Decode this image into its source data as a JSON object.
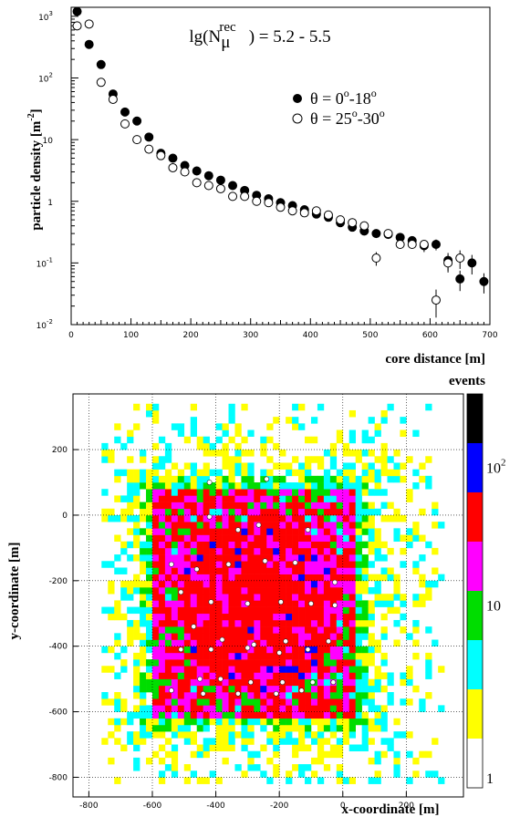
{
  "chart_data": [
    {
      "type": "scatter",
      "title": "",
      "annotation": {
        "prefix": "lg(N",
        "sub": "μ",
        "sup": "rec",
        "suffix": ") = 5.2 - 5.5"
      },
      "xlabel": "core distance  [m]",
      "ylabel": "particle density  [m",
      "ylabel_sup": "-2",
      "ylabel_close": "]",
      "x_ticks": [
        "0",
        "100",
        "200",
        "300",
        "400",
        "500",
        "600",
        "700"
      ],
      "y_ticks": [
        {
          "base": "10",
          "exp": "-2"
        },
        {
          "base": "10",
          "exp": "-1"
        },
        {
          "base": "1",
          "exp": ""
        },
        {
          "base": "10",
          "exp": ""
        },
        {
          "base": "10",
          "exp": "2"
        },
        {
          "base": "10",
          "exp": "3"
        }
      ],
      "xlim": [
        0,
        700
      ],
      "ylim": [
        0.01,
        1400
      ],
      "yscale": "log",
      "legend_position": "top-right",
      "series": [
        {
          "name": "θ = 0°-18°",
          "legend_text": "θ = 0",
          "legend_sup1": "o",
          "legend_mid": "-18",
          "legend_sup2": "o",
          "marker": "filled-circle",
          "x": [
            10,
            30,
            50,
            70,
            90,
            110,
            130,
            150,
            170,
            190,
            210,
            230,
            250,
            270,
            290,
            310,
            330,
            350,
            370,
            390,
            410,
            430,
            450,
            470,
            490,
            510,
            530,
            550,
            570,
            590,
            610,
            630,
            650,
            670,
            690
          ],
          "y": [
            1200,
            350,
            165,
            55,
            28,
            20,
            11,
            6,
            5,
            3.8,
            3.1,
            2.6,
            2.2,
            1.8,
            1.5,
            1.25,
            1.1,
            0.95,
            0.85,
            0.73,
            0.62,
            0.55,
            0.45,
            0.38,
            0.33,
            0.3,
            0.29,
            0.26,
            0.23,
            0.19,
            0.2,
            0.11,
            0.055,
            0.1,
            0.05
          ],
          "err": [
            0,
            0,
            0,
            0,
            0,
            0,
            0,
            0,
            0,
            0,
            0,
            0,
            0,
            0,
            0,
            0,
            0,
            0,
            0,
            0,
            0,
            0,
            0,
            0,
            0,
            0,
            0,
            0,
            0,
            0.04,
            0.04,
            0.035,
            0.02,
            0.035,
            0.018
          ]
        },
        {
          "name": "θ = 25°-30°",
          "legend_text": "θ = 25",
          "legend_sup1": "o",
          "legend_mid": "-30",
          "legend_sup2": "o",
          "marker": "open-circle",
          "x": [
            10,
            30,
            50,
            70,
            90,
            110,
            130,
            150,
            170,
            190,
            210,
            230,
            250,
            270,
            290,
            310,
            330,
            350,
            370,
            390,
            410,
            430,
            450,
            470,
            490,
            510,
            530,
            550,
            570,
            590,
            610,
            630,
            650
          ],
          "y": [
            700,
            750,
            85,
            45,
            18,
            10,
            7,
            5.5,
            3.5,
            3,
            2,
            1.8,
            1.6,
            1.2,
            1.2,
            1,
            0.95,
            0.8,
            0.7,
            0.65,
            0.7,
            0.6,
            0.5,
            0.45,
            0.4,
            0.12,
            0.3,
            0.2,
            0.2,
            0.2,
            0.025,
            0.1,
            0.12
          ],
          "err": [
            0,
            0,
            0,
            0,
            0,
            0,
            0,
            0,
            0,
            0,
            0,
            0,
            0,
            0,
            0,
            0,
            0,
            0,
            0,
            0,
            0,
            0,
            0,
            0,
            0,
            0.03,
            0,
            0,
            0,
            0,
            0.012,
            0.03,
            0.04
          ]
        }
      ]
    },
    {
      "type": "heatmap",
      "title": "",
      "xlabel": "x-coordinate [m]",
      "ylabel": "y-coordinate [m]",
      "x_ticks": [
        "-800",
        "-600",
        "-400",
        "-200",
        "0",
        "200"
      ],
      "y_ticks": [
        "200",
        "0",
        "-200",
        "-400",
        "-600",
        "-800"
      ],
      "xlim": [
        -850,
        380
      ],
      "ylim": [
        -860,
        370
      ],
      "colorbar": {
        "title": "events",
        "labels": [
          {
            "base": "1",
            "exp": ""
          },
          {
            "base": "10",
            "exp": ""
          },
          {
            "base": "10",
            "exp": "2"
          }
        ],
        "colors": [
          "#ffffff",
          "#ffff00",
          "#00ffff",
          "#00dd00",
          "#ff00ff",
          "#ff0000",
          "#0000ff",
          "#000000"
        ]
      },
      "detector_stations_x": [
        -420,
        -330,
        -265,
        -110,
        -540,
        -460,
        -360,
        -245,
        -150,
        -510,
        -415,
        -300,
        -195,
        -100,
        -470,
        -380,
        -280,
        -180,
        -510,
        -415,
        -300,
        -200,
        -110,
        -450,
        -385,
        -290,
        -190,
        -95,
        -540,
        -440,
        -330,
        -210,
        -130,
        -30,
        -45,
        -25,
        -25,
        -420,
        -240
      ],
      "detector_stations_y": [
        -5,
        -45,
        -30,
        -45,
        -150,
        -165,
        -150,
        -140,
        -145,
        -235,
        -265,
        -270,
        -265,
        -270,
        -340,
        -380,
        -395,
        -385,
        -410,
        -410,
        -405,
        -420,
        -410,
        -500,
        -500,
        -510,
        -510,
        -510,
        -535,
        -545,
        -545,
        -545,
        -535,
        -510,
        -385,
        -275,
        -205,
        100,
        110
      ]
    }
  ]
}
